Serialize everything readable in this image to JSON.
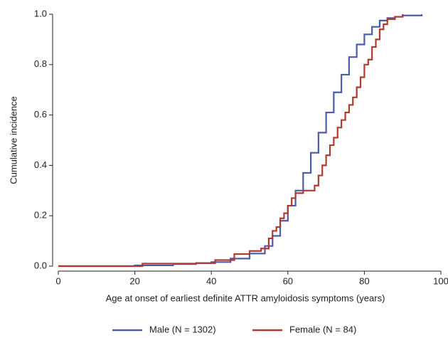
{
  "chart_data": {
    "type": "step",
    "xlabel": "Age at onset of earliest definite ATTR amyloidosis symptoms (years)",
    "ylabel": "Cumulative incidence",
    "xlim": [
      0,
      100
    ],
    "xticks": [
      0,
      20,
      40,
      60,
      80,
      100
    ],
    "ylim": [
      0,
      1
    ],
    "yticks": [
      {
        "value": 0,
        "label": "0.0"
      },
      {
        "value": 0.2,
        "label": "0.2"
      },
      {
        "value": 0.4,
        "label": "0.4"
      },
      {
        "value": 0.6,
        "label": "0.6"
      },
      {
        "value": 0.8,
        "label": "0.8"
      },
      {
        "value": 1,
        "label": "1.0"
      }
    ],
    "legend": "bottom",
    "series": [
      {
        "name": "Male (N = 1302)",
        "color": "#4a5cab",
        "x": [
          0,
          20,
          30,
          36,
          40,
          45,
          50,
          54,
          56,
          58,
          60,
          62,
          64,
          66,
          68,
          70,
          72,
          74,
          76,
          78,
          80,
          82,
          84,
          86,
          88,
          90,
          95
        ],
        "values": [
          0,
          0.003,
          0.008,
          0.012,
          0.016,
          0.03,
          0.05,
          0.08,
          0.12,
          0.18,
          0.24,
          0.3,
          0.37,
          0.45,
          0.53,
          0.61,
          0.69,
          0.76,
          0.83,
          0.88,
          0.92,
          0.95,
          0.975,
          0.985,
          0.99,
          0.995,
          1.0
        ]
      },
      {
        "name": "Female (N = 84)",
        "color": "#b03a2e",
        "x": [
          0,
          22,
          36,
          41,
          46,
          50,
          53,
          55,
          56,
          57,
          58,
          59,
          60,
          61,
          62,
          64,
          67,
          68,
          69,
          70,
          71,
          72,
          73,
          74,
          75,
          76,
          77,
          78,
          79,
          80,
          81,
          82,
          83,
          84,
          85,
          86,
          88,
          90
        ],
        "values": [
          0,
          0.01,
          0.012,
          0.024,
          0.048,
          0.06,
          0.07,
          0.11,
          0.14,
          0.155,
          0.19,
          0.21,
          0.24,
          0.27,
          0.29,
          0.3,
          0.32,
          0.36,
          0.4,
          0.44,
          0.48,
          0.51,
          0.55,
          0.58,
          0.61,
          0.64,
          0.67,
          0.71,
          0.75,
          0.8,
          0.82,
          0.87,
          0.9,
          0.94,
          0.96,
          0.98,
          0.99,
          1.0
        ]
      }
    ]
  }
}
